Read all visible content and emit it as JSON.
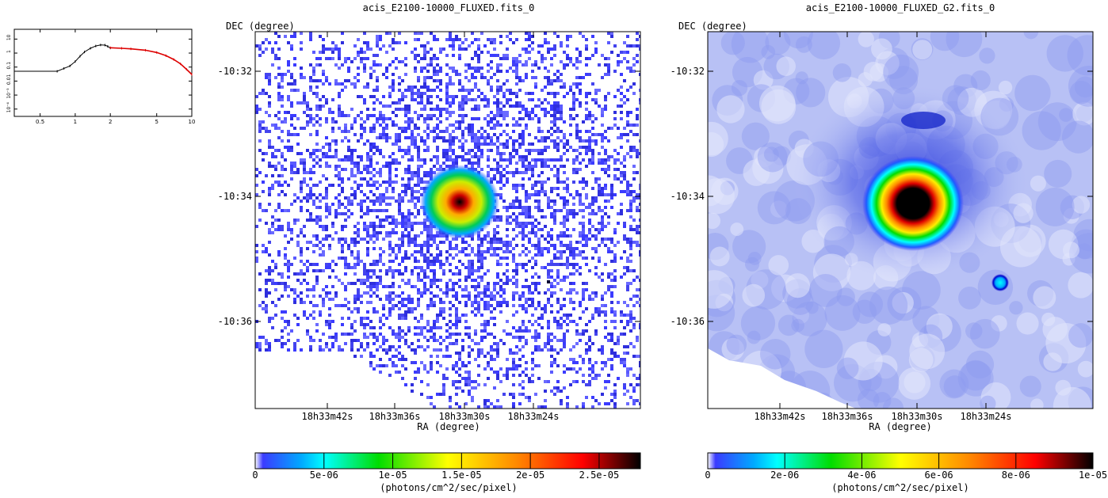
{
  "chart_data": [
    {
      "type": "line",
      "xscale": "log",
      "yscale": "log",
      "xlim": [
        0.3,
        10
      ],
      "ylim": [
        3e-05,
        50
      ],
      "xtick_labels": [
        "0.5",
        "1",
        "2",
        "5",
        "10"
      ],
      "ytick_labels": [
        "10⁻⁴",
        "10⁻³",
        "0.01",
        "0.1",
        "1",
        "10"
      ],
      "series": [
        {
          "color": "#000000",
          "x": [
            0.3,
            0.7,
            0.8,
            0.9,
            1.0,
            1.1,
            1.2,
            1.35,
            1.5,
            1.65,
            1.8,
            1.9,
            2.0
          ],
          "values": [
            0.05,
            0.05,
            0.08,
            0.12,
            0.25,
            0.6,
            1.2,
            2.2,
            3.2,
            3.8,
            3.7,
            3.0,
            2.3
          ]
        },
        {
          "color": "#dd0000",
          "x": [
            2.0,
            2.5,
            3.0,
            4.0,
            5.0,
            6.0,
            7.0,
            8.0,
            9.0,
            10.0
          ],
          "values": [
            2.4,
            2.2,
            2.0,
            1.6,
            1.1,
            0.65,
            0.35,
            0.17,
            0.07,
            0.03
          ]
        }
      ]
    },
    {
      "type": "heatmap",
      "title": "acis_E2100-10000_FLUXED.fits_0",
      "xlabel": "RA (degree)",
      "ylabel": "DEC (degree)",
      "xtick_labels": [
        "18h33m42s",
        "18h33m36s",
        "18h33m30s",
        "18h33m24s"
      ],
      "ytick_labels": [
        "-10:32",
        "-10:34",
        "-10:36"
      ],
      "colorbar": {
        "label": "(photons/cm^2/sec/pixel)",
        "range": [
          0,
          2.8e-05
        ],
        "tick_labels": [
          "0",
          "5e-06",
          "1e-05",
          "1.5e-05",
          "2e-05",
          "2.5e-05"
        ],
        "tick_values": [
          0,
          5e-06,
          1e-05,
          1.5e-05,
          2e-05,
          2.5e-05
        ]
      }
    },
    {
      "type": "heatmap",
      "title": "acis_E2100-10000_FLUXED_G2.fits_0",
      "xlabel": "RA (degree)",
      "ylabel": "DEC (degree)",
      "xtick_labels": [
        "18h33m42s",
        "18h33m36s",
        "18h33m30s",
        "18h33m24s"
      ],
      "ytick_labels": [
        "-10:32",
        "-10:34",
        "-10:36"
      ],
      "colorbar": {
        "label": "(photons/cm^2/sec/pixel)",
        "range": [
          0,
          1e-05
        ],
        "tick_labels": [
          "0",
          "2e-06",
          "4e-06",
          "6e-06",
          "8e-06",
          "1e-05"
        ],
        "tick_values": [
          0,
          2e-06,
          4e-06,
          6e-06,
          8e-06,
          1e-05
        ]
      }
    }
  ]
}
